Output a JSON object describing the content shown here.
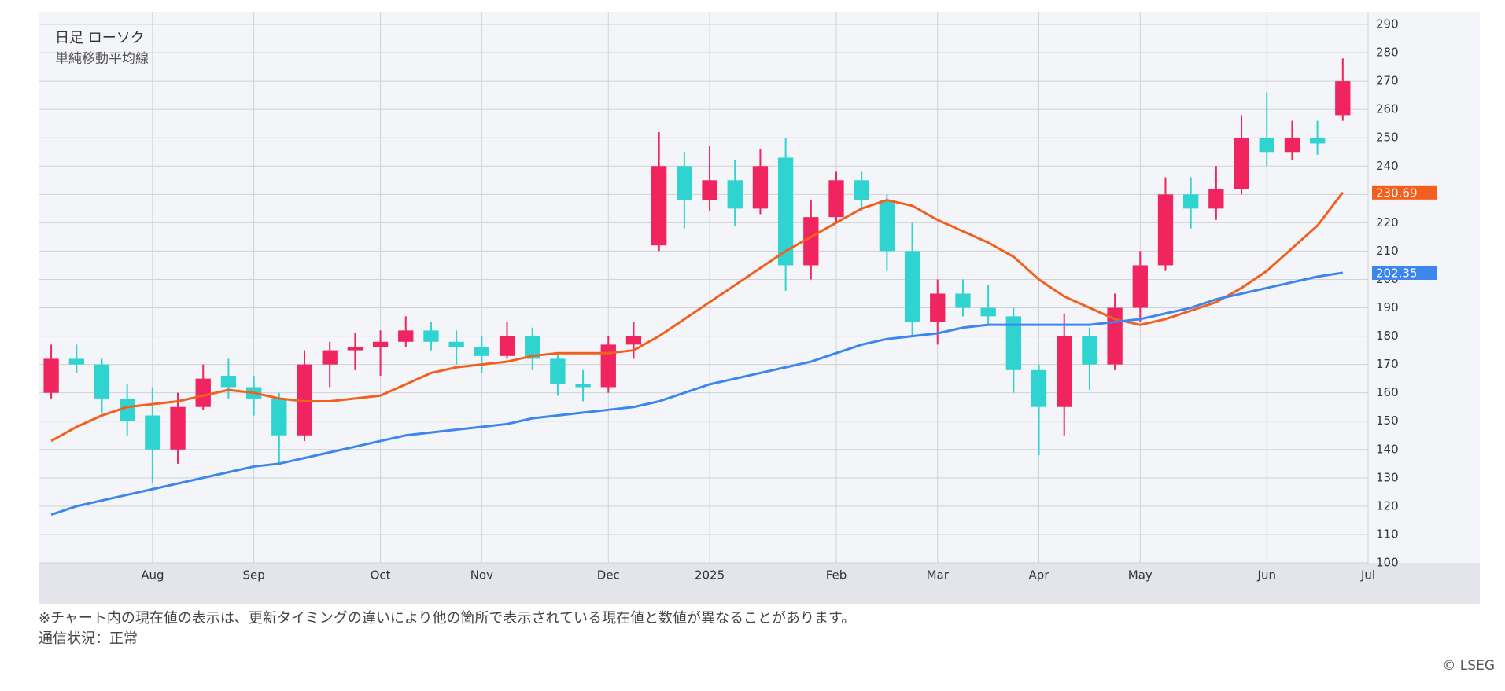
{
  "chart_data": {
    "type": "candlestick",
    "title": "日足 ローソク",
    "subtitle": "単純移動平均線",
    "categories": [
      null,
      null,
      null,
      null,
      "Aug",
      null,
      null,
      null,
      "Sep",
      null,
      null,
      null,
      null,
      "Oct",
      null,
      null,
      null,
      "Nov",
      null,
      null,
      null,
      null,
      "Dec",
      null,
      null,
      null,
      "2025",
      null,
      null,
      null,
      null,
      "Feb",
      null,
      null,
      null,
      "Mar",
      null,
      null,
      null,
      "Apr",
      null,
      null,
      null,
      "May",
      null,
      null,
      null,
      null,
      "Jun",
      null,
      null,
      null,
      "Jul"
    ],
    "open": [
      160,
      172,
      170,
      158,
      152,
      140,
      155,
      166,
      162,
      158,
      145,
      170,
      175,
      176,
      178,
      182,
      178,
      176,
      173,
      180,
      172,
      163,
      162,
      177,
      212,
      240,
      228,
      235,
      225,
      243,
      205,
      222,
      235,
      228,
      210,
      185,
      195,
      190,
      187,
      168,
      155,
      180,
      170,
      190,
      205,
      230,
      225,
      232,
      250,
      245,
      250,
      258,
      null
    ],
    "high": [
      177,
      177,
      172,
      163,
      162,
      160,
      170,
      172,
      166,
      160,
      175,
      178,
      181,
      182,
      187,
      185,
      182,
      180,
      185,
      183,
      174,
      168,
      180,
      185,
      252,
      245,
      247,
      242,
      246,
      250,
      228,
      238,
      238,
      230,
      220,
      200,
      200,
      198,
      190,
      170,
      188,
      183,
      195,
      210,
      236,
      236,
      240,
      258,
      266,
      256,
      256,
      278,
      null
    ],
    "low": [
      158,
      167,
      153,
      145,
      128,
      135,
      154,
      158,
      152,
      135,
      143,
      162,
      168,
      166,
      176,
      175,
      170,
      167,
      172,
      168,
      159,
      157,
      160,
      172,
      210,
      218,
      224,
      219,
      223,
      196,
      200,
      220,
      224,
      203,
      180,
      177,
      187,
      184,
      160,
      138,
      145,
      161,
      168,
      185,
      203,
      218,
      221,
      230,
      240,
      242,
      244,
      256,
      null
    ],
    "close": [
      172,
      170,
      158,
      150,
      140,
      155,
      165,
      162,
      158,
      145,
      170,
      175,
      176,
      178,
      182,
      178,
      176,
      173,
      180,
      172,
      163,
      162,
      177,
      180,
      240,
      228,
      235,
      225,
      240,
      205,
      222,
      235,
      228,
      210,
      185,
      195,
      190,
      187,
      168,
      155,
      180,
      170,
      190,
      205,
      230,
      225,
      232,
      250,
      245,
      250,
      248,
      270,
      null
    ],
    "up_color": "#f0245e",
    "down_color": "#2fd3d0",
    "lines": [
      {
        "color": "#f2601f",
        "values": [
          143,
          148,
          152,
          155,
          156,
          157,
          159,
          161,
          160,
          158,
          157,
          157,
          158,
          159,
          163,
          167,
          169,
          170,
          171,
          173,
          174,
          174,
          174,
          175,
          180,
          186,
          192,
          198,
          204,
          210,
          215,
          220,
          225,
          228,
          226,
          221,
          217,
          213,
          208,
          200,
          194,
          190,
          186,
          184,
          186,
          189,
          192,
          197,
          203,
          211,
          219,
          230.69,
          null
        ]
      },
      {
        "color": "#3d86ee",
        "values": [
          117,
          120,
          122,
          124,
          126,
          128,
          130,
          132,
          134,
          135,
          137,
          139,
          141,
          143,
          145,
          146,
          147,
          148,
          149,
          151,
          152,
          153,
          154,
          155,
          157,
          160,
          163,
          165,
          167,
          169,
          171,
          174,
          177,
          179,
          180,
          181,
          183,
          184,
          184,
          184,
          184,
          184,
          185,
          186,
          188,
          190,
          193,
          195,
          197,
          199,
          201,
          202.35,
          null
        ]
      }
    ],
    "ylim": [
      100,
      290
    ],
    "yticks": [
      100,
      110,
      120,
      130,
      140,
      150,
      160,
      170,
      180,
      190,
      200,
      210,
      220,
      230,
      240,
      250,
      260,
      270,
      280,
      290
    ],
    "grid": true
  },
  "notes": [
    "※チャート内の現在値の表示は、更新タイミングの違いにより他の箇所で表示されている現在値と数値が異なることがあります。",
    "通信状況：正常"
  ],
  "copyright": "© LSEG"
}
